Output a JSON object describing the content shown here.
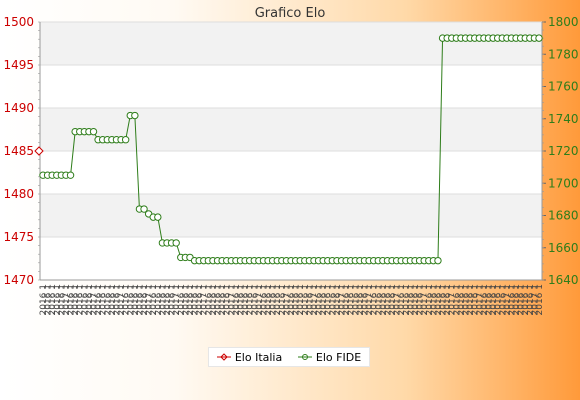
{
  "chart_data": {
    "type": "line",
    "title": "Grafico Elo",
    "x_tick_pattern": [
      "2016 1",
      "2016 1",
      "2016 1",
      "2016 1",
      "2016 1",
      "2017 1"
    ],
    "left_axis": {
      "ylim": [
        1470,
        1500
      ],
      "ticks": [
        1470,
        1475,
        1480,
        1485,
        1490,
        1495,
        1500
      ]
    },
    "right_axis": {
      "ylim": [
        1640,
        1800
      ],
      "ticks": [
        1640,
        1660,
        1680,
        1700,
        1720,
        1740,
        1760,
        1780,
        1800
      ]
    },
    "grid": true,
    "legend_position": "bottom-center",
    "series": [
      {
        "name": "Elo Italia",
        "axis": "left",
        "color": "#cc0000",
        "points": [
          {
            "i": 0,
            "y": 1485
          }
        ]
      },
      {
        "name": "Elo FIDE",
        "axis": "right",
        "color": "#2e7d1a",
        "values": [
          1705,
          1705,
          1705,
          1705,
          1705,
          1705,
          1705,
          1732,
          1732,
          1732,
          1732,
          1732,
          1727,
          1727,
          1727,
          1727,
          1727,
          1727,
          1727,
          1742,
          1742,
          1684,
          1684,
          1681,
          1679,
          1679,
          1663,
          1663,
          1663,
          1663,
          1654,
          1654,
          1654,
          1652,
          1652,
          1652,
          1652,
          1652,
          1652,
          1652,
          1652,
          1652,
          1652,
          1652,
          1652,
          1652,
          1652,
          1652,
          1652,
          1652,
          1652,
          1652,
          1652,
          1652,
          1652,
          1652,
          1652,
          1652,
          1652,
          1652,
          1652,
          1652,
          1652,
          1652,
          1652,
          1652,
          1652,
          1652,
          1652,
          1652,
          1652,
          1652,
          1652,
          1652,
          1652,
          1652,
          1652,
          1652,
          1652,
          1652,
          1652,
          1652,
          1652,
          1652,
          1652,
          1652,
          1652,
          1790,
          1790,
          1790,
          1790,
          1790,
          1790,
          1790,
          1790,
          1790,
          1790,
          1790,
          1790,
          1790,
          1790,
          1790,
          1790,
          1790,
          1790,
          1790,
          1790,
          1790,
          1790
        ]
      }
    ]
  }
}
